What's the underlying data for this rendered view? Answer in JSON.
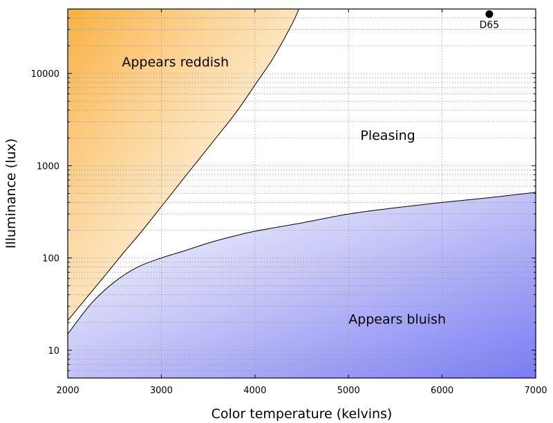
{
  "chart_data": {
    "type": "area",
    "title": "",
    "xlabel": "Color temperature (kelvins)",
    "ylabel": "Illuminance (lux)",
    "xlim": [
      2000,
      7000
    ],
    "ylim": [
      5,
      50000
    ],
    "yscale": "log",
    "grid": true,
    "x_ticks": [
      2000,
      3000,
      4000,
      5000,
      6000,
      7000
    ],
    "y_ticks": [
      10,
      100,
      1000,
      10000
    ],
    "series": [
      {
        "x": [
          2000,
          2200,
          2400,
          2600,
          2800,
          3000,
          3200,
          3400,
          3600,
          3800,
          4000,
          4200,
          4400,
          4470
        ],
        "y": [
          21,
          37,
          65,
          115,
          200,
          360,
          650,
          1170,
          2100,
          3800,
          7500,
          15000,
          35000,
          50000
        ]
      },
      {
        "x": [
          2000,
          2250,
          2500,
          2750,
          3000,
          3250,
          3500,
          3750,
          4000,
          4500,
          5000,
          5500,
          6000,
          6500,
          7000
        ],
        "y": [
          15,
          32,
          55,
          80,
          100,
          120,
          145,
          170,
          195,
          240,
          300,
          350,
          400,
          450,
          515
        ]
      }
    ],
    "regions": [
      {
        "label": "Appears reddish",
        "color": "#f9ae3b"
      },
      {
        "label": "Pleasing",
        "color": "#ffffff"
      },
      {
        "label": "Appears bluish",
        "color": "#7a7af5"
      }
    ],
    "points": [
      {
        "label": "D65",
        "x": 6504,
        "y": 44000
      }
    ]
  }
}
